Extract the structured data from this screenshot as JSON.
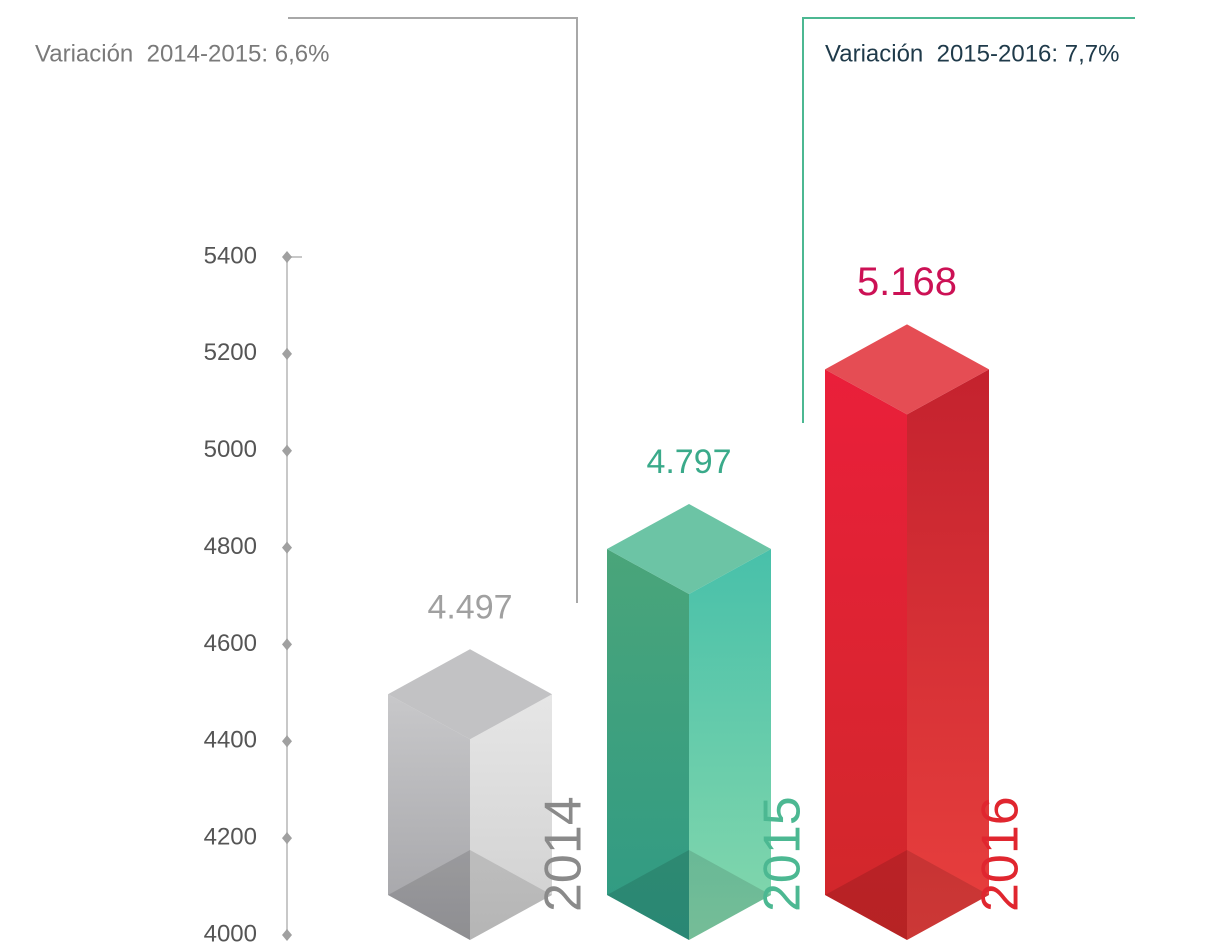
{
  "chart_data": {
    "type": "bar",
    "categories": [
      "2014",
      "2015",
      "2016"
    ],
    "values": [
      4497,
      4797,
      5168
    ],
    "value_labels": [
      "4.497",
      "4.797",
      "5.168"
    ],
    "colors": [
      "#b5b5b7",
      "#4cb892",
      "#e0262f"
    ],
    "ylim": [
      4000,
      5400
    ],
    "yticks": [
      4000,
      4200,
      4400,
      4600,
      4800,
      5000,
      5200,
      5400
    ],
    "annotations": [
      "Variación  2014-2015: 6,6%",
      "Variación  2015-2016: 7,7%"
    ]
  }
}
